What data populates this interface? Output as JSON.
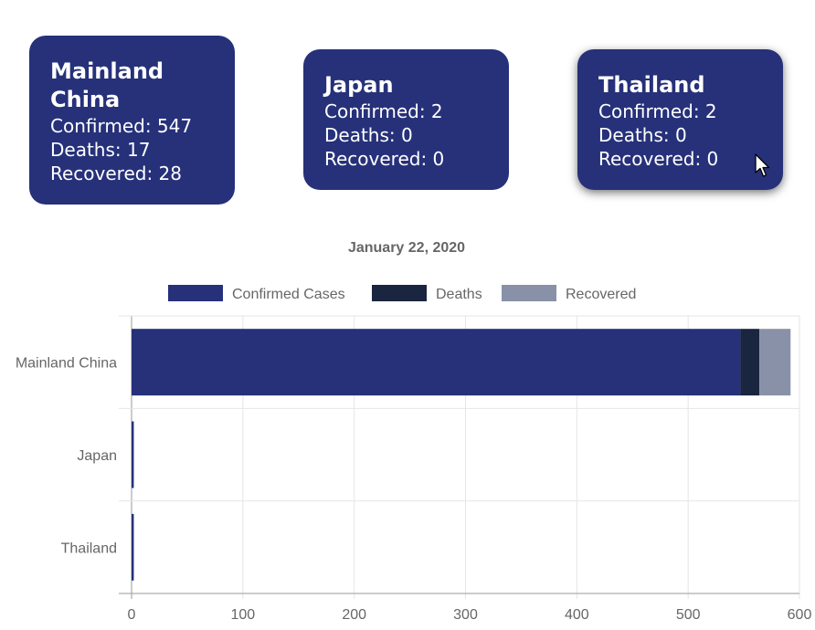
{
  "cards": [
    {
      "name": "Mainland China",
      "confirmed": "Confirmed: 547",
      "deaths": "Deaths: 17",
      "recovered": "Recovered: 28"
    },
    {
      "name": "Japan",
      "confirmed": "Confirmed: 2",
      "deaths": "Deaths: 0",
      "recovered": "Recovered: 0"
    },
    {
      "name": "Thailand",
      "confirmed": "Confirmed: 2",
      "deaths": "Deaths: 0",
      "recovered": "Recovered: 0"
    }
  ],
  "colors": {
    "card_bg": "#26317a",
    "confirmed": "#26317a",
    "deaths": "#1a253f",
    "recovered": "#8891a8"
  },
  "chart_data": {
    "type": "bar",
    "orientation": "horizontal",
    "stacked": true,
    "title": "January 22, 2020",
    "categories": [
      "Mainland China",
      "Japan",
      "Thailand"
    ],
    "series": [
      {
        "name": "Confirmed Cases",
        "values": [
          547,
          2,
          2
        ]
      },
      {
        "name": "Deaths",
        "values": [
          17,
          0,
          0
        ]
      },
      {
        "name": "Recovered",
        "values": [
          28,
          0,
          0
        ]
      }
    ],
    "xlim": [
      0,
      600
    ],
    "xticks": [
      0,
      100,
      200,
      300,
      400,
      500,
      600
    ],
    "grid": true,
    "legend": "top"
  }
}
